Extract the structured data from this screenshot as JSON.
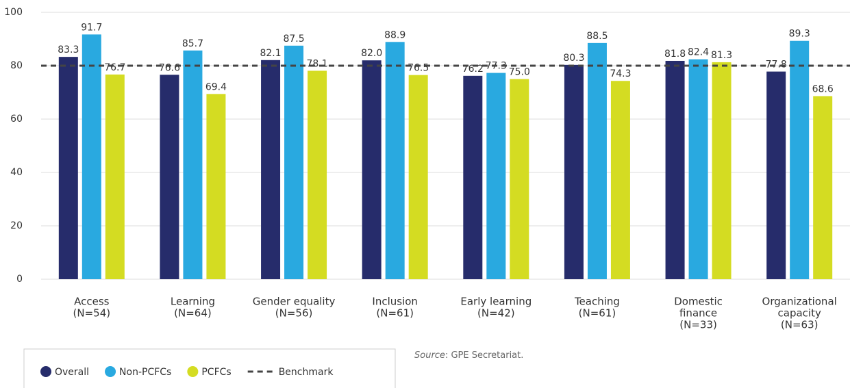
{
  "chart_data": {
    "type": "bar",
    "categories": [
      [
        "Access",
        "(N=54)"
      ],
      [
        "Learning",
        "(N=64)"
      ],
      [
        "Gender equality",
        "(N=56)"
      ],
      [
        "Inclusion",
        "(N=61)"
      ],
      [
        "Early learning",
        "(N=42)"
      ],
      [
        "Teaching",
        "(N=61)"
      ],
      [
        "Domestic",
        "finance",
        "(N=33)"
      ],
      [
        "Organizational",
        "capacity",
        "(N=63)"
      ]
    ],
    "series": [
      {
        "name": "Overall",
        "color": "#262c6b",
        "values": [
          83.3,
          76.6,
          82.1,
          82.0,
          76.2,
          80.3,
          81.8,
          77.8
        ],
        "value_labels": [
          "83.3",
          "76.6",
          "82.1",
          "82.0",
          "76.2",
          "80.3",
          "81.8",
          "77.8"
        ]
      },
      {
        "name": "Non-PCFCs",
        "color": "#29a9e0",
        "values": [
          91.7,
          85.7,
          87.5,
          88.9,
          77.3,
          88.5,
          82.4,
          89.3
        ],
        "value_labels": [
          "91.7",
          "85.7",
          "87.5",
          "88.9",
          "77.3",
          "88.5",
          "82.4",
          "89.3"
        ]
      },
      {
        "name": "PCFCs",
        "color": "#d4dc22",
        "values": [
          76.7,
          69.4,
          78.1,
          76.5,
          75.0,
          74.3,
          81.3,
          68.6
        ],
        "value_labels": [
          "76.7",
          "69.4",
          "78.1",
          "76.5",
          "75.0",
          "74.3",
          "81.3",
          "68.6"
        ]
      }
    ],
    "benchmark": {
      "name": "Benchmark",
      "value": 80,
      "color": "#444444"
    },
    "ylim": [
      0,
      100
    ],
    "yticks": [
      0,
      20,
      40,
      60,
      80,
      100
    ],
    "grid": true,
    "source": {
      "label": "Source",
      "text": ": GPE Secretariat."
    }
  }
}
